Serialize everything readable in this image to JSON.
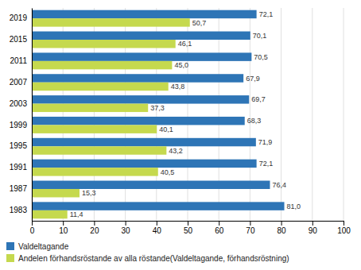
{
  "chart_data": {
    "type": "bar",
    "orientation": "horizontal",
    "categories": [
      "2019",
      "2015",
      "2011",
      "2007",
      "2003",
      "1999",
      "1995",
      "1991",
      "1987",
      "1983"
    ],
    "series": [
      {
        "name": "Valdeltagande",
        "color": "#2E75B6",
        "values": [
          72.1,
          70.1,
          70.5,
          67.9,
          69.7,
          68.3,
          71.9,
          72.1,
          76.4,
          81.0
        ],
        "value_labels": [
          "72,1",
          "70,1",
          "70,5",
          "67,9",
          "69,7",
          "68,3",
          "71,9",
          "72,1",
          "76,4",
          "81,0"
        ]
      },
      {
        "name": "Andelen förhandsröstande av alla röstande(Valdeltagande, förhandsröstning)",
        "color": "#C5D94E",
        "values": [
          50.7,
          46.1,
          45.0,
          43.8,
          37.3,
          40.1,
          43.2,
          40.5,
          15.3,
          11.4
        ],
        "value_labels": [
          "50,7",
          "46,1",
          "45,0",
          "43,8",
          "37,3",
          "40,1",
          "43,2",
          "40,5",
          "15,3",
          "11,4"
        ]
      }
    ],
    "xlim": [
      0,
      100
    ],
    "xticks": [
      0,
      10,
      20,
      30,
      40,
      50,
      60,
      70,
      80,
      90,
      100
    ],
    "grid": true,
    "data_labels": true,
    "legend": "bottom"
  }
}
